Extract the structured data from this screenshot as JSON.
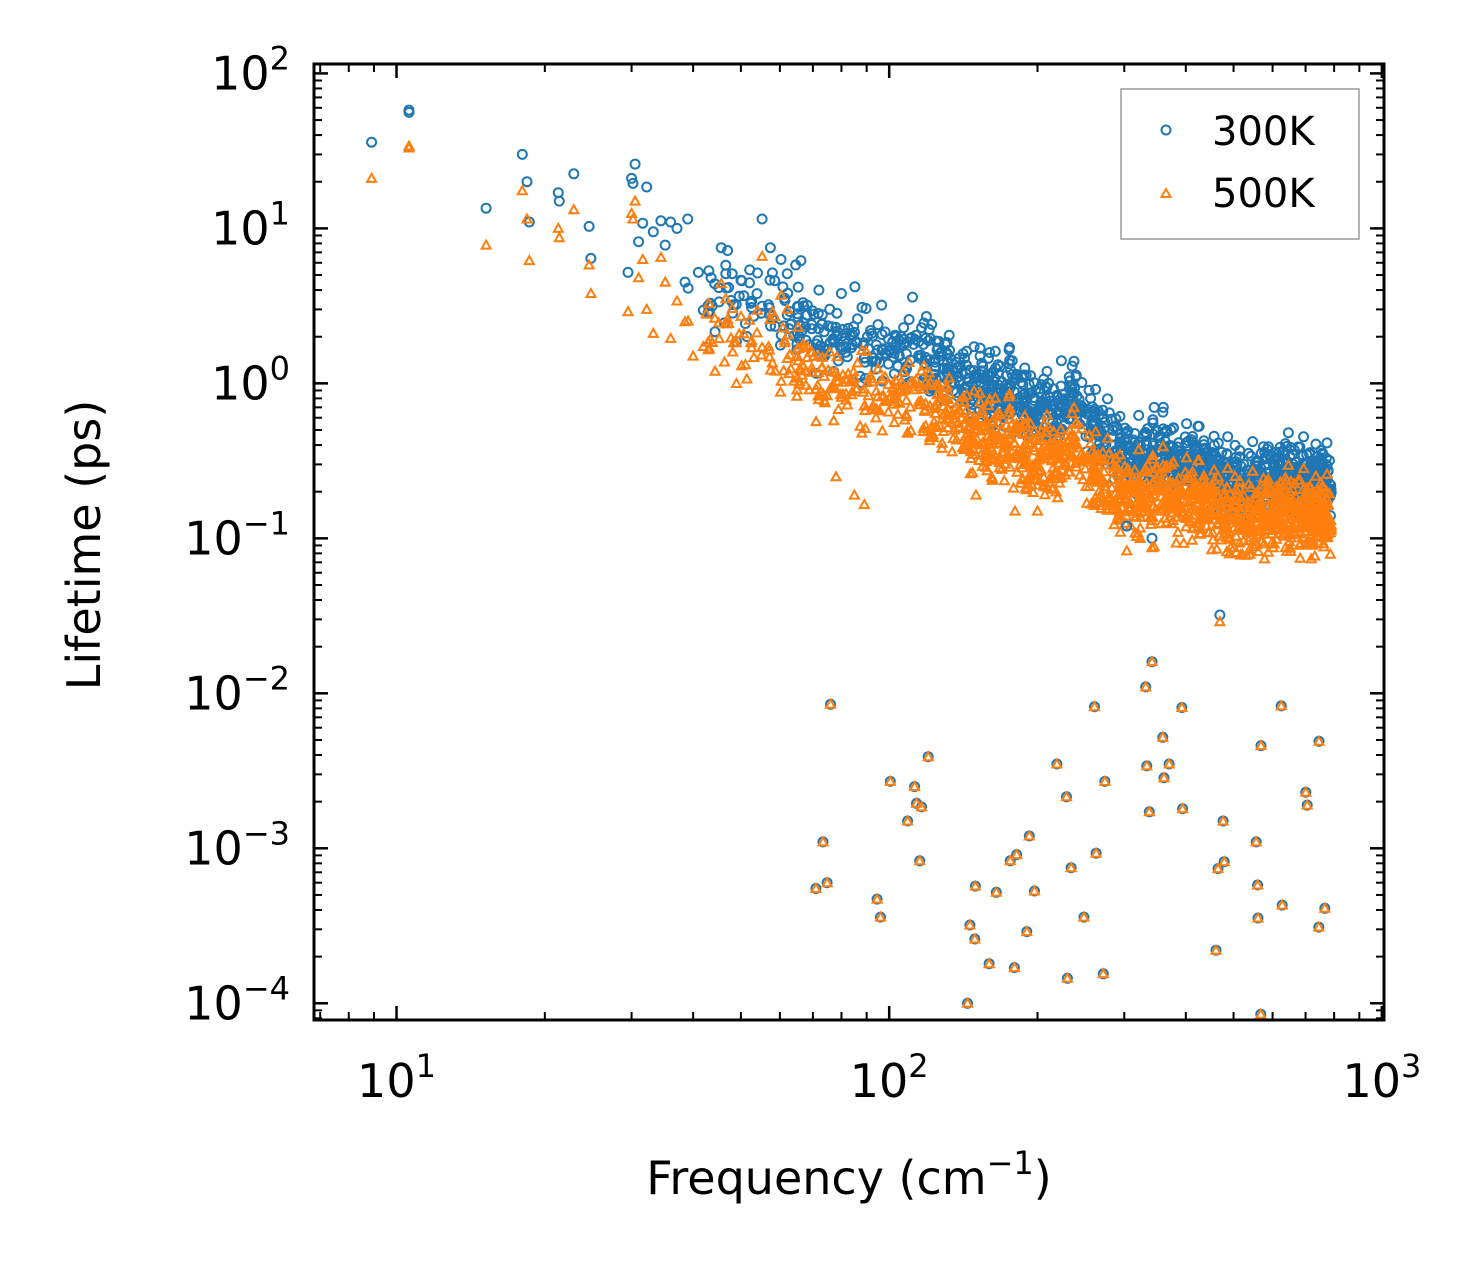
{
  "chart_data": {
    "type": "scatter",
    "xscale": "log",
    "yscale": "log",
    "xlabel": "Frequency (cm",
    "xlabel_sup": "−1",
    "xlabel_close": ")",
    "ylabel": "Lifetime (ps)",
    "xlim": [
      6.8,
      1010
    ],
    "ylim": [
      7.8e-05,
      115
    ],
    "x_ticks": [
      {
        "value": 10,
        "base": "10",
        "exp": "1"
      },
      {
        "value": 100,
        "base": "10",
        "exp": "2"
      },
      {
        "value": 1000,
        "base": "10",
        "exp": "3"
      }
    ],
    "y_ticks": [
      {
        "value": 0.0001,
        "base": "10",
        "exp": "−4"
      },
      {
        "value": 0.001,
        "base": "10",
        "exp": "−3"
      },
      {
        "value": 0.01,
        "base": "10",
        "exp": "−2"
      },
      {
        "value": 0.1,
        "base": "10",
        "exp": "−1"
      },
      {
        "value": 1,
        "base": "10",
        "exp": "0"
      },
      {
        "value": 10,
        "base": "10",
        "exp": "1"
      },
      {
        "value": 100,
        "base": "10",
        "exp": "2"
      }
    ],
    "legend_position": "top-right",
    "series": [
      {
        "name": "300K",
        "marker": "circle",
        "color": "#1f77b4",
        "points": [
          [
            8.9,
            36
          ],
          [
            10.6,
            58
          ],
          [
            10.6,
            56
          ],
          [
            15.2,
            13.5
          ],
          [
            18.0,
            30
          ],
          [
            18.4,
            20
          ],
          [
            18.6,
            11
          ],
          [
            21.3,
            17
          ],
          [
            21.4,
            15
          ],
          [
            22.9,
            22.5
          ],
          [
            24.6,
            10.3
          ],
          [
            24.8,
            6.4
          ],
          [
            29.5,
            5.2
          ],
          [
            30.0,
            21
          ],
          [
            30.2,
            19.5
          ],
          [
            30.5,
            26
          ],
          [
            31.0,
            8.2
          ],
          [
            31.6,
            10.8
          ],
          [
            32.2,
            18.5
          ],
          [
            33.2,
            9.5
          ],
          [
            34.4,
            11.2
          ],
          [
            35.1,
            7.8
          ],
          [
            36.0,
            11
          ],
          [
            37.1,
            10
          ],
          [
            38.5,
            4.5
          ],
          [
            39.0,
            11.5
          ],
          [
            41.0,
            5.2
          ],
          [
            43.5,
            4.8
          ],
          [
            45.6,
            7.5
          ],
          [
            46.6,
            5.1
          ],
          [
            47.0,
            7.2
          ],
          [
            50.2,
            4.6
          ],
          [
            52.1,
            5.4
          ],
          [
            55.2,
            11.5
          ],
          [
            57.4,
            7.5
          ],
          [
            58.6,
            4.6
          ],
          [
            60.3,
            6.3
          ],
          [
            62.1,
            5.1
          ],
          [
            64.6,
            5.8
          ],
          [
            66.2,
            6.2
          ],
          [
            72.0,
            4.0
          ],
          [
            80.0,
            3.8
          ],
          [
            85.2,
            4.2
          ],
          [
            96.5,
            3.2
          ],
          [
            111.5,
            3.6
          ],
          [
            119.0,
            2.7
          ],
          [
            122.0,
            2.4
          ],
          [
            177.7,
            1.4
          ],
          [
            223.6,
            1.4
          ],
          [
            232.0,
            1.1
          ],
          [
            303.6,
            0.12
          ],
          [
            341.5,
            0.1
          ],
          [
            345.0,
            0.7
          ],
          [
            360.0,
            0.7
          ],
          [
            71.0,
            0.00055
          ],
          [
            73.4,
            0.0011
          ],
          [
            74.8,
            0.0006
          ],
          [
            76.0,
            0.0085
          ],
          [
            94.5,
            0.00047
          ],
          [
            96.0,
            0.00036
          ],
          [
            100.5,
            0.0027
          ],
          [
            109.0,
            0.0015
          ],
          [
            112.6,
            0.0025
          ],
          [
            113.6,
            0.00195
          ],
          [
            115.3,
            0.00083
          ],
          [
            116.3,
            0.00185
          ],
          [
            120.0,
            0.0039
          ],
          [
            144.2,
            0.0001
          ],
          [
            145.8,
            0.00032
          ],
          [
            149.2,
            0.00026
          ],
          [
            149.6,
            0.00057
          ],
          [
            159.5,
            0.00018
          ],
          [
            165.0,
            0.00052
          ],
          [
            176.0,
            0.00083
          ],
          [
            179.5,
            0.00017
          ],
          [
            181.5,
            0.00091
          ],
          [
            190.2,
            0.00029
          ],
          [
            192.5,
            0.0012
          ],
          [
            197.2,
            0.00053
          ],
          [
            219.0,
            0.0035
          ],
          [
            229.0,
            0.00215
          ],
          [
            230.0,
            0.000145
          ],
          [
            234.0,
            0.00075
          ],
          [
            248.4,
            0.00036
          ],
          [
            261.0,
            0.0082
          ],
          [
            263.0,
            0.00093
          ],
          [
            272.0,
            0.000155
          ],
          [
            274.0,
            0.0027
          ],
          [
            331.6,
            0.011
          ],
          [
            333.4,
            0.0034
          ],
          [
            337.2,
            0.00172
          ],
          [
            341.5,
            0.016
          ],
          [
            359.2,
            0.0052
          ],
          [
            361.2,
            0.00285
          ],
          [
            370.0,
            0.0035
          ],
          [
            392.7,
            0.0081
          ],
          [
            394.0,
            0.0018
          ],
          [
            460.7,
            0.00022
          ],
          [
            465.0,
            0.00074
          ],
          [
            469.0,
            0.032
          ],
          [
            476.1,
            0.0015
          ],
          [
            478.6,
            0.00082
          ],
          [
            555.9,
            0.0011
          ],
          [
            559.4,
            0.00058
          ],
          [
            560.4,
            0.000355
          ],
          [
            567.8,
            8.5e-05
          ],
          [
            568.3,
            0.0046
          ],
          [
            624.6,
            0.0083
          ],
          [
            627.6,
            0.00043
          ],
          [
            700.8,
            0.0023
          ],
          [
            705.5,
            0.0019
          ],
          [
            744.6,
            0.00031
          ],
          [
            745.3,
            0.0049
          ],
          [
            765.8,
            0.00041
          ]
        ]
      },
      {
        "name": "500K",
        "marker": "triangle",
        "color": "#ff7f0e",
        "points": [
          [
            8.9,
            21
          ],
          [
            10.6,
            34
          ],
          [
            10.6,
            33
          ],
          [
            15.2,
            7.8
          ],
          [
            18.0,
            17.5
          ],
          [
            18.4,
            11.5
          ],
          [
            18.6,
            6.2
          ],
          [
            21.3,
            10
          ],
          [
            21.4,
            8.7
          ],
          [
            22.9,
            13.2
          ],
          [
            24.6,
            5.8
          ],
          [
            24.8,
            3.8
          ],
          [
            29.5,
            2.9
          ],
          [
            30.0,
            12.5
          ],
          [
            30.2,
            11.5
          ],
          [
            30.5,
            15
          ],
          [
            31.0,
            4.8
          ],
          [
            31.6,
            6.3
          ],
          [
            32.2,
            3.0
          ],
          [
            33.2,
            2.1
          ],
          [
            34.4,
            6.5
          ],
          [
            35.1,
            4.5
          ],
          [
            36.0,
            1.95
          ],
          [
            37.1,
            3.4
          ],
          [
            38.5,
            2.5
          ],
          [
            40.0,
            1.5
          ],
          [
            42.5,
            2.8
          ],
          [
            45.6,
            4.4
          ],
          [
            47.0,
            2.6
          ],
          [
            50.2,
            1.3
          ],
          [
            55.2,
            6.6
          ],
          [
            58.6,
            2.7
          ],
          [
            60.3,
            3.7
          ],
          [
            62.1,
            3.0
          ],
          [
            78.0,
            0.25
          ],
          [
            85.0,
            0.19
          ],
          [
            89.0,
            0.165
          ],
          [
            150.0,
            0.19
          ],
          [
            180.0,
            0.15
          ],
          [
            200.0,
            0.15
          ],
          [
            303.6,
            0.083
          ],
          [
            341.5,
            0.087
          ],
          [
            345.0,
            0.088
          ],
          [
            71.0,
            0.00055
          ],
          [
            73.4,
            0.0011
          ],
          [
            74.8,
            0.0006
          ],
          [
            76.0,
            0.0085
          ],
          [
            94.5,
            0.00047
          ],
          [
            96.0,
            0.00036
          ],
          [
            100.5,
            0.0027
          ],
          [
            109.0,
            0.0015
          ],
          [
            112.6,
            0.0025
          ],
          [
            113.6,
            0.00195
          ],
          [
            115.3,
            0.00083
          ],
          [
            116.3,
            0.00185
          ],
          [
            120.0,
            0.0039
          ],
          [
            144.2,
            0.0001
          ],
          [
            145.8,
            0.00032
          ],
          [
            149.2,
            0.00026
          ],
          [
            149.6,
            0.00057
          ],
          [
            159.5,
            0.00018
          ],
          [
            165.0,
            0.00052
          ],
          [
            176.0,
            0.00083
          ],
          [
            179.5,
            0.00017
          ],
          [
            181.5,
            0.00091
          ],
          [
            190.2,
            0.00029
          ],
          [
            192.5,
            0.0012
          ],
          [
            197.2,
            0.00053
          ],
          [
            219.0,
            0.0035
          ],
          [
            229.0,
            0.00215
          ],
          [
            230.0,
            0.000145
          ],
          [
            234.0,
            0.00075
          ],
          [
            248.4,
            0.00036
          ],
          [
            261.0,
            0.0082
          ],
          [
            263.0,
            0.00093
          ],
          [
            272.0,
            0.000155
          ],
          [
            274.0,
            0.0027
          ],
          [
            331.6,
            0.011
          ],
          [
            333.4,
            0.0034
          ],
          [
            337.2,
            0.00172
          ],
          [
            341.5,
            0.016
          ],
          [
            359.2,
            0.0052
          ],
          [
            361.2,
            0.00285
          ],
          [
            370.0,
            0.0035
          ],
          [
            392.7,
            0.0081
          ],
          [
            394.0,
            0.0018
          ],
          [
            460.7,
            0.00022
          ],
          [
            465.0,
            0.00074
          ],
          [
            469.0,
            0.029
          ],
          [
            476.1,
            0.0015
          ],
          [
            478.6,
            0.00082
          ],
          [
            555.9,
            0.0011
          ],
          [
            559.4,
            0.00058
          ],
          [
            560.4,
            0.000355
          ],
          [
            567.8,
            8.5e-05
          ],
          [
            568.3,
            0.0046
          ],
          [
            624.6,
            0.0083
          ],
          [
            627.6,
            0.00043
          ],
          [
            700.8,
            0.0023
          ],
          [
            705.5,
            0.0019
          ],
          [
            744.6,
            0.00031
          ],
          [
            745.3,
            0.0049
          ],
          [
            765.8,
            0.00041
          ]
        ]
      }
    ],
    "dense_band": {
      "description": "dense continuum of modes from ~38 to ~790 cm^-1",
      "x_range": [
        38,
        790
      ],
      "anchors_300K": [
        [
          38,
          4.2
        ],
        [
          50,
          3.2
        ],
        [
          60,
          2.7
        ],
        [
          70,
          2.2
        ],
        [
          80,
          1.9
        ],
        [
          95,
          1.7
        ],
        [
          110,
          1.5
        ],
        [
          125,
          1.3
        ],
        [
          140,
          1.05
        ],
        [
          160,
          0.95
        ],
        [
          180,
          0.82
        ],
        [
          200,
          0.7
        ],
        [
          220,
          0.58
        ],
        [
          232,
          0.95
        ],
        [
          250,
          0.58
        ],
        [
          280,
          0.4
        ],
        [
          320,
          0.32
        ],
        [
          350,
          0.36
        ],
        [
          380,
          0.33
        ],
        [
          420,
          0.3
        ],
        [
          470,
          0.26
        ],
        [
          520,
          0.23
        ],
        [
          560,
          0.24
        ],
        [
          620,
          0.27
        ],
        [
          680,
          0.24
        ],
        [
          740,
          0.23
        ],
        [
          790,
          0.22
        ]
      ],
      "anchors_500K": [
        [
          38,
          2.6
        ],
        [
          50,
          1.8
        ],
        [
          60,
          1.4
        ],
        [
          70,
          1.15
        ],
        [
          80,
          0.95
        ],
        [
          95,
          0.85
        ],
        [
          110,
          0.75
        ],
        [
          125,
          0.65
        ],
        [
          140,
          0.53
        ],
        [
          160,
          0.45
        ],
        [
          180,
          0.38
        ],
        [
          200,
          0.33
        ],
        [
          220,
          0.3
        ],
        [
          232,
          0.45
        ],
        [
          250,
          0.28
        ],
        [
          280,
          0.21
        ],
        [
          320,
          0.18
        ],
        [
          350,
          0.2
        ],
        [
          380,
          0.19
        ],
        [
          420,
          0.17
        ],
        [
          470,
          0.15
        ],
        [
          520,
          0.14
        ],
        [
          560,
          0.145
        ],
        [
          620,
          0.155
        ],
        [
          680,
          0.14
        ],
        [
          740,
          0.135
        ],
        [
          790,
          0.13
        ]
      ],
      "count_per_series": 1400
    }
  }
}
